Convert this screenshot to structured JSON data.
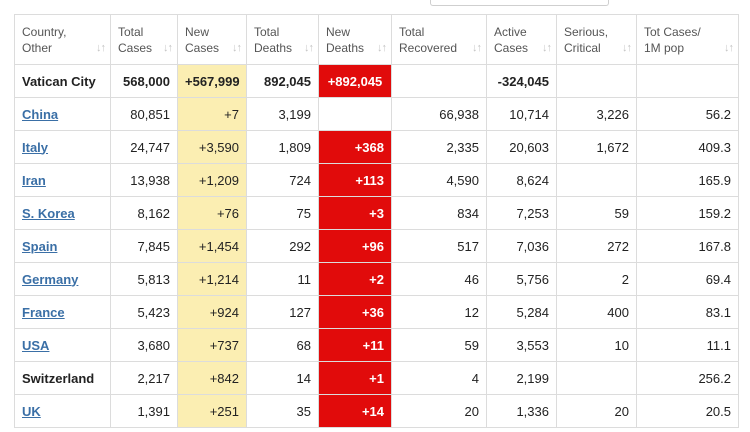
{
  "columns": [
    {
      "key": "country",
      "label_line1": "Country,",
      "label_line2": "Other"
    },
    {
      "key": "total_cases",
      "label_line1": "Total",
      "label_line2": "Cases"
    },
    {
      "key": "new_cases",
      "label_line1": "New",
      "label_line2": "Cases"
    },
    {
      "key": "total_deaths",
      "label_line1": "Total",
      "label_line2": "Deaths"
    },
    {
      "key": "new_deaths",
      "label_line1": "New",
      "label_line2": "Deaths"
    },
    {
      "key": "total_recovered",
      "label_line1": "Total",
      "label_line2": "Recovered"
    },
    {
      "key": "active_cases",
      "label_line1": "Active",
      "label_line2": "Cases"
    },
    {
      "key": "serious_critical",
      "label_line1": "Serious,",
      "label_line2": "Critical"
    },
    {
      "key": "tot_cases_per_1m",
      "label_line1": "Tot Cases/",
      "label_line2": "1M pop"
    }
  ],
  "rows": [
    {
      "country": "Vatican City",
      "linked": false,
      "total_cases": "568,000",
      "new_cases": "+567,999",
      "total_deaths": "892,045",
      "new_deaths": "+892,045",
      "total_recovered": "",
      "active_cases": "-324,045",
      "serious_critical": "",
      "tot_cases_per_1m": ""
    },
    {
      "country": "China",
      "linked": true,
      "total_cases": "80,851",
      "new_cases": "+7",
      "total_deaths": "3,199",
      "new_deaths": "",
      "total_recovered": "66,938",
      "active_cases": "10,714",
      "serious_critical": "3,226",
      "tot_cases_per_1m": "56.2"
    },
    {
      "country": "Italy",
      "linked": true,
      "total_cases": "24,747",
      "new_cases": "+3,590",
      "total_deaths": "1,809",
      "new_deaths": "+368",
      "total_recovered": "2,335",
      "active_cases": "20,603",
      "serious_critical": "1,672",
      "tot_cases_per_1m": "409.3"
    },
    {
      "country": "Iran",
      "linked": true,
      "total_cases": "13,938",
      "new_cases": "+1,209",
      "total_deaths": "724",
      "new_deaths": "+113",
      "total_recovered": "4,590",
      "active_cases": "8,624",
      "serious_critical": "",
      "tot_cases_per_1m": "165.9"
    },
    {
      "country": "S. Korea",
      "linked": true,
      "total_cases": "8,162",
      "new_cases": "+76",
      "total_deaths": "75",
      "new_deaths": "+3",
      "total_recovered": "834",
      "active_cases": "7,253",
      "serious_critical": "59",
      "tot_cases_per_1m": "159.2"
    },
    {
      "country": "Spain",
      "linked": true,
      "total_cases": "7,845",
      "new_cases": "+1,454",
      "total_deaths": "292",
      "new_deaths": "+96",
      "total_recovered": "517",
      "active_cases": "7,036",
      "serious_critical": "272",
      "tot_cases_per_1m": "167.8"
    },
    {
      "country": "Germany",
      "linked": true,
      "total_cases": "5,813",
      "new_cases": "+1,214",
      "total_deaths": "11",
      "new_deaths": "+2",
      "total_recovered": "46",
      "active_cases": "5,756",
      "serious_critical": "2",
      "tot_cases_per_1m": "69.4"
    },
    {
      "country": "France",
      "linked": true,
      "total_cases": "5,423",
      "new_cases": "+924",
      "total_deaths": "127",
      "new_deaths": "+36",
      "total_recovered": "12",
      "active_cases": "5,284",
      "serious_critical": "400",
      "tot_cases_per_1m": "83.1"
    },
    {
      "country": "USA",
      "linked": true,
      "total_cases": "3,680",
      "new_cases": "+737",
      "total_deaths": "68",
      "new_deaths": "+11",
      "total_recovered": "59",
      "active_cases": "3,553",
      "serious_critical": "10",
      "tot_cases_per_1m": "11.1"
    },
    {
      "country": "Switzerland",
      "linked": false,
      "total_cases": "2,217",
      "new_cases": "+842",
      "total_deaths": "14",
      "new_deaths": "+1",
      "total_recovered": "4",
      "active_cases": "2,199",
      "serious_critical": "",
      "tot_cases_per_1m": "256.2"
    },
    {
      "country": "UK",
      "linked": true,
      "total_cases": "1,391",
      "new_cases": "+251",
      "total_deaths": "35",
      "new_deaths": "+14",
      "total_recovered": "20",
      "active_cases": "1,336",
      "serious_critical": "20",
      "tot_cases_per_1m": "20.5"
    }
  ],
  "colors": {
    "new_cases_bg": "#fbeeb2",
    "new_deaths_bg": "#e10b0b",
    "link": "#3a6fa6",
    "border": "#dcdcdc"
  }
}
